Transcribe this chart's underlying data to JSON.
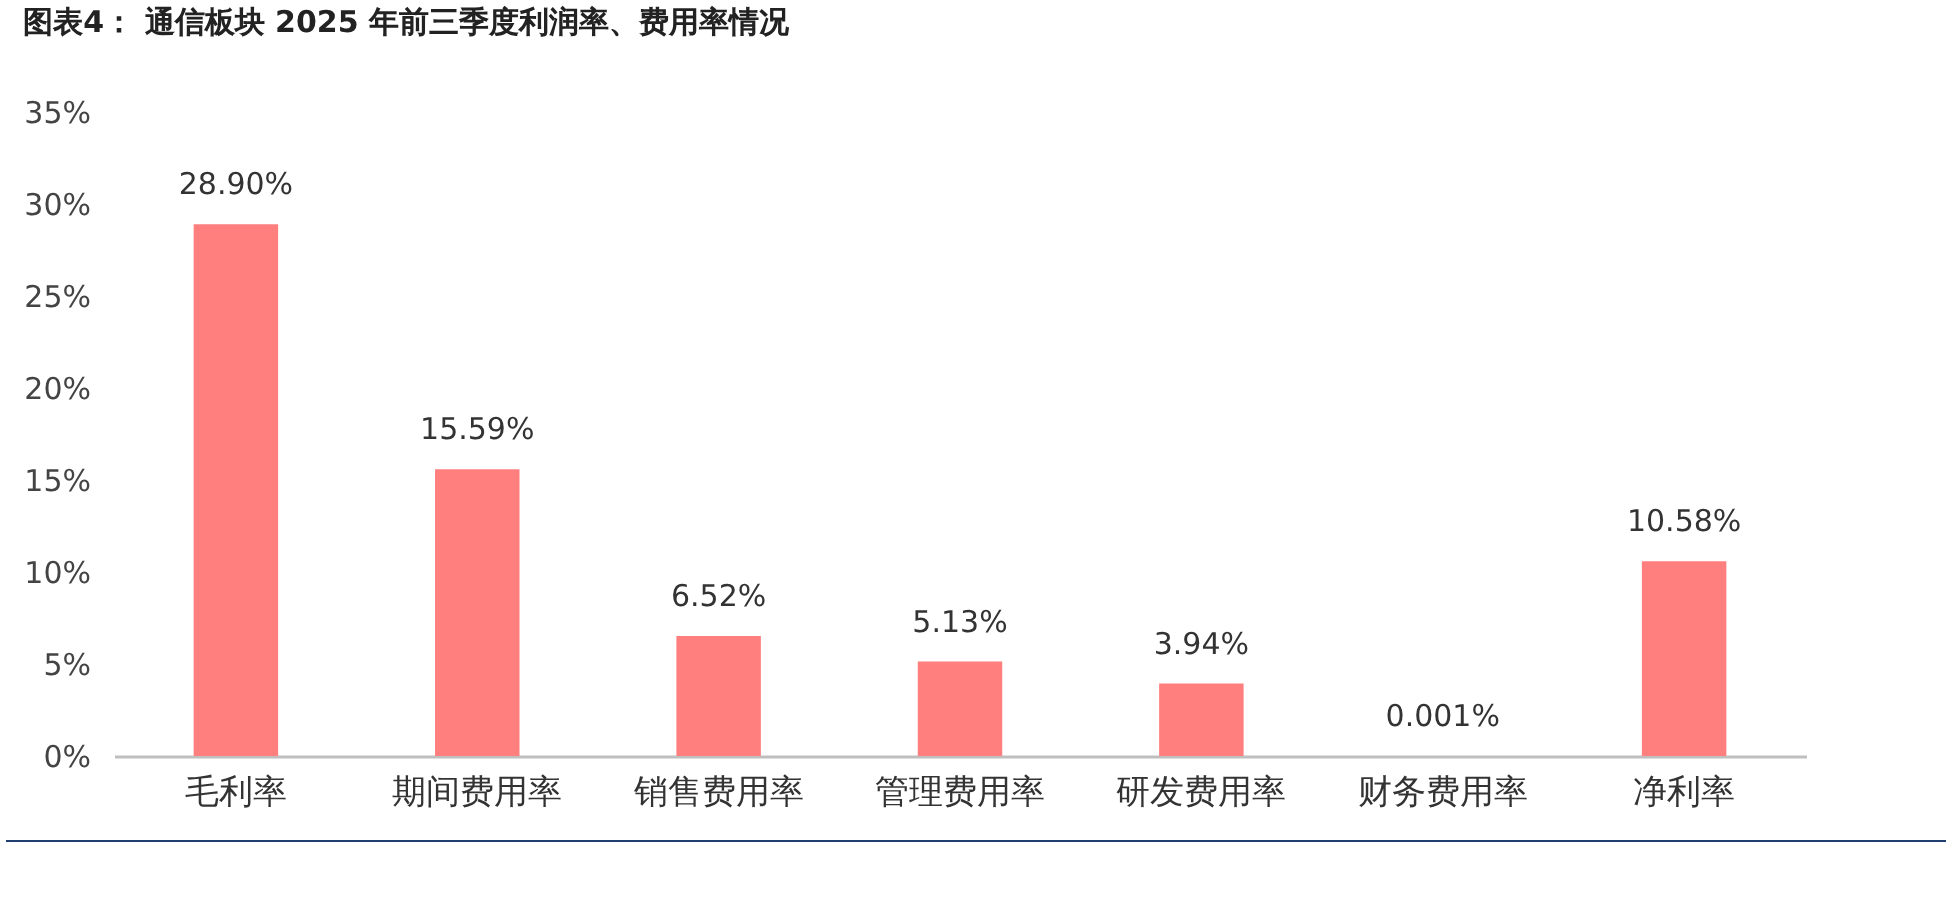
{
  "chart_data": {
    "type": "bar",
    "title": "图表4：  通信板块 2025 年前三季度利润率、费用率情况",
    "categories": [
      "毛利率",
      "期间费用率",
      "销售费用率",
      "管理费用率",
      "研发费用率",
      "财务费用率",
      "净利率"
    ],
    "values": [
      28.9,
      15.59,
      6.52,
      5.13,
      3.94,
      0.001,
      10.58
    ],
    "value_labels": [
      "28.90%",
      "15.59%",
      "6.52%",
      "5.13%",
      "3.94%",
      "0.001%",
      "10.58%"
    ],
    "color": "#ff7f7f",
    "ylim": [
      0,
      35
    ],
    "yticks": [
      {
        "value": 0,
        "label": "0%"
      },
      {
        "value": 5,
        "label": "5%"
      },
      {
        "value": 10,
        "label": "10%"
      },
      {
        "value": 15,
        "label": "15%"
      },
      {
        "value": 20,
        "label": "20%"
      },
      {
        "value": 25,
        "label": "25%"
      },
      {
        "value": 30,
        "label": "30%"
      },
      {
        "value": 35,
        "label": "35%"
      }
    ],
    "grid": false
  }
}
